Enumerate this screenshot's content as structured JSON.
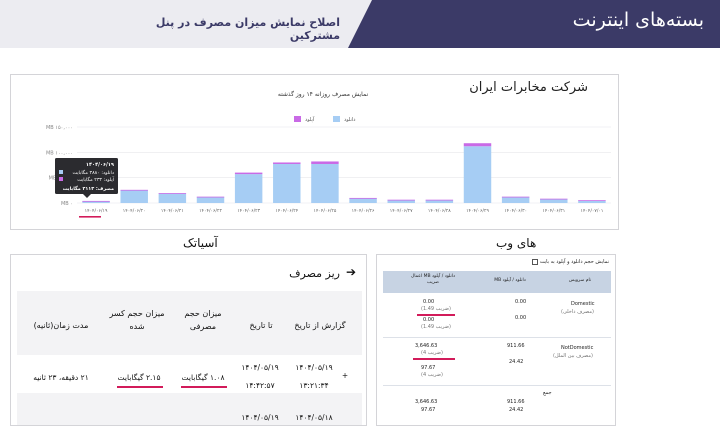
{
  "header": {
    "title": "بسته‌های اینترنت",
    "subtitle": "اصلاح نمایش میزان مصرف در پنل مشترکین"
  },
  "colors": {
    "download": "#a6cdf4",
    "upload": "#c96ae6",
    "navy": "#3b3a67",
    "highlight": "#d21b5a"
  },
  "usage_chart": {
    "company": "شرکت مخابرات ایران",
    "title": "نمایش مصرف روزانه ۱۴ روز گذشته",
    "legend": {
      "download": "دانلود",
      "upload": "آپلود"
    },
    "tooltip": {
      "date": "۱۴۰۴/۰۶/۱۹",
      "download": "دانلود: ۳۸۸۰ مگابایت",
      "upload": "آپلود: ۲۳۳ مگابایت",
      "total": "مصرف: ۴۱۱۳ مگابایت"
    }
  },
  "chart_data": {
    "type": "bar",
    "stacked": true,
    "y_ticks": [
      "MB ۱۵۰,۰۰۰",
      "MB ۱۰۰,۰۰۰",
      "MB ۵۰,۰۰۰",
      "MB ۰"
    ],
    "ylim": [
      0,
      150000
    ],
    "grid": true,
    "legend_position": "top-center",
    "categories": [
      "۱۴۰۴/۰۶/۱۹",
      "۱۴۰۴/۰۶/۲۰",
      "۱۴۰۴/۰۶/۲۱",
      "۱۴۰۴/۰۶/۲۲",
      "۱۴۰۴/۰۶/۲۳",
      "۱۴۰۴/۰۶/۲۴",
      "۱۴۰۴/۰۶/۲۵",
      "۱۴۰۴/۰۶/۲۶",
      "۱۴۰۴/۰۶/۲۷",
      "۱۴۰۴/۰۶/۲۸",
      "۱۴۰۴/۰۶/۲۹",
      "۱۴۰۴/۰۶/۳۰",
      "۱۴۰۴/۰۶/۳۱",
      "۱۴۰۴/۰۷/۰۱"
    ],
    "series": [
      {
        "name": "دانلود",
        "values": [
          3880,
          25000,
          19000,
          12000,
          57000,
          77000,
          77000,
          9000,
          6000,
          6000,
          112000,
          12000,
          8000,
          5000
        ]
      },
      {
        "name": "آپلود",
        "values": [
          233,
          1000,
          500,
          500,
          3000,
          3000,
          5000,
          1000,
          500,
          500,
          6000,
          500,
          500,
          500
        ]
      }
    ]
  },
  "labels": {
    "asiatech": "آسیاتک",
    "hiweb": "های وب"
  },
  "asiatech_table": {
    "title": "ریز مصرف",
    "headers": [
      "گزارش از تاریخ",
      "تا تاریخ",
      "میزان حجم مصرفی",
      "میزان حجم کسر شده",
      "مدت زمان(ثانیه)"
    ],
    "rows": [
      {
        "from_date": "۱۴۰۴/۰۵/۱۹",
        "from_time": "۱۳:۲۱:۳۴",
        "to_date": "۱۴۰۴/۰۵/۱۹",
        "to_time": "۱۴:۴۲:۵۷",
        "used": "۱.۰۸ گیگابایت",
        "deducted": "۲.۱۵ گیگابایت",
        "duration": "۲۱ دقیقه، ۲۳ ثانیه"
      },
      {
        "from_date": "۱۴۰۴/۰۵/۱۸",
        "to_date": "۱۴۰۴/۰۵/۱۹"
      }
    ]
  },
  "hiweb_table": {
    "checkbox_label": "نمایش حجم دانلود و آپلود به بایت",
    "headers": {
      "service": "نام سرویس",
      "usage": "دانلود / آپلود MB",
      "usage_coef": "دانلود / آپلود MB اعمال ضریب"
    },
    "rows": [
      {
        "service": "Domestic",
        "service_note": "(مصرف داخلی)",
        "dl": "0.00",
        "ul": "0.00",
        "dl_coef": "0.00",
        "dl_coef_note": "(ضریب 1.49)",
        "ul_coef": "0.00",
        "ul_coef_note": "(ضریب 1.49)"
      },
      {
        "service": "NotDomestic",
        "service_note": "(مصرف بین الملل)",
        "dl": "911.66",
        "ul": "24.42",
        "dl_coef": "3,646.63",
        "dl_coef_note": "(ضریب 4)",
        "ul_coef": "97.67",
        "ul_coef_note": "(ضریب 4)"
      }
    ],
    "total": {
      "label": "جمع",
      "dl": "911.66",
      "ul": "24.42",
      "dl_coef": "3,646.63",
      "ul_coef": "97.67"
    }
  }
}
